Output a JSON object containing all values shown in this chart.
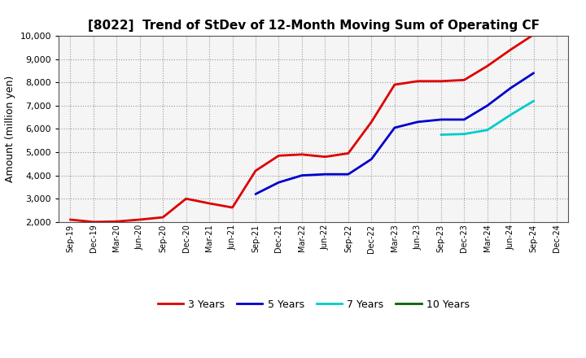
{
  "title": "[8022]  Trend of StDev of 12-Month Moving Sum of Operating CF",
  "ylabel": "Amount (million yen)",
  "background_color": "#ffffff",
  "plot_bg_color": "#f5f5f5",
  "grid_color": "#aaaaaa",
  "ylim": [
    2000,
    10000
  ],
  "yticks": [
    2000,
    3000,
    4000,
    5000,
    6000,
    7000,
    8000,
    9000,
    10000
  ],
  "x_labels": [
    "Sep-19",
    "Dec-19",
    "Mar-20",
    "Jun-20",
    "Sep-20",
    "Dec-20",
    "Mar-21",
    "Jun-21",
    "Sep-21",
    "Dec-21",
    "Mar-22",
    "Jun-22",
    "Sep-22",
    "Dec-22",
    "Mar-23",
    "Jun-23",
    "Sep-23",
    "Dec-23",
    "Mar-24",
    "Jun-24",
    "Sep-24",
    "Dec-24"
  ],
  "series": [
    {
      "label": "3 Years",
      "color": "#dd0000",
      "linewidth": 2.0,
      "data": [
        [
          0,
          2100
        ],
        [
          1,
          2000
        ],
        [
          2,
          2020
        ],
        [
          3,
          2100
        ],
        [
          4,
          2200
        ],
        [
          5,
          3000
        ],
        [
          6,
          2800
        ],
        [
          7,
          2620
        ],
        [
          8,
          4200
        ],
        [
          9,
          4850
        ],
        [
          10,
          4900
        ],
        [
          11,
          4800
        ],
        [
          12,
          4950
        ],
        [
          13,
          6300
        ],
        [
          14,
          7900
        ],
        [
          15,
          8050
        ],
        [
          16,
          8050
        ],
        [
          17,
          8100
        ],
        [
          18,
          8700
        ],
        [
          19,
          9400
        ],
        [
          20,
          10050
        ]
      ]
    },
    {
      "label": "5 Years",
      "color": "#0000cc",
      "linewidth": 2.0,
      "data": [
        [
          8,
          3200
        ],
        [
          9,
          3700
        ],
        [
          10,
          4000
        ],
        [
          11,
          4050
        ],
        [
          12,
          4050
        ],
        [
          13,
          4700
        ],
        [
          14,
          6050
        ],
        [
          15,
          6300
        ],
        [
          16,
          6400
        ],
        [
          17,
          6400
        ],
        [
          18,
          7000
        ],
        [
          19,
          7750
        ],
        [
          20,
          8400
        ]
      ]
    },
    {
      "label": "7 Years",
      "color": "#00cccc",
      "linewidth": 2.0,
      "data": [
        [
          16,
          5750
        ],
        [
          17,
          5780
        ],
        [
          18,
          5950
        ],
        [
          19,
          6600
        ],
        [
          20,
          7200
        ]
      ]
    },
    {
      "label": "10 Years",
      "color": "#006600",
      "linewidth": 2.0,
      "data": []
    }
  ]
}
